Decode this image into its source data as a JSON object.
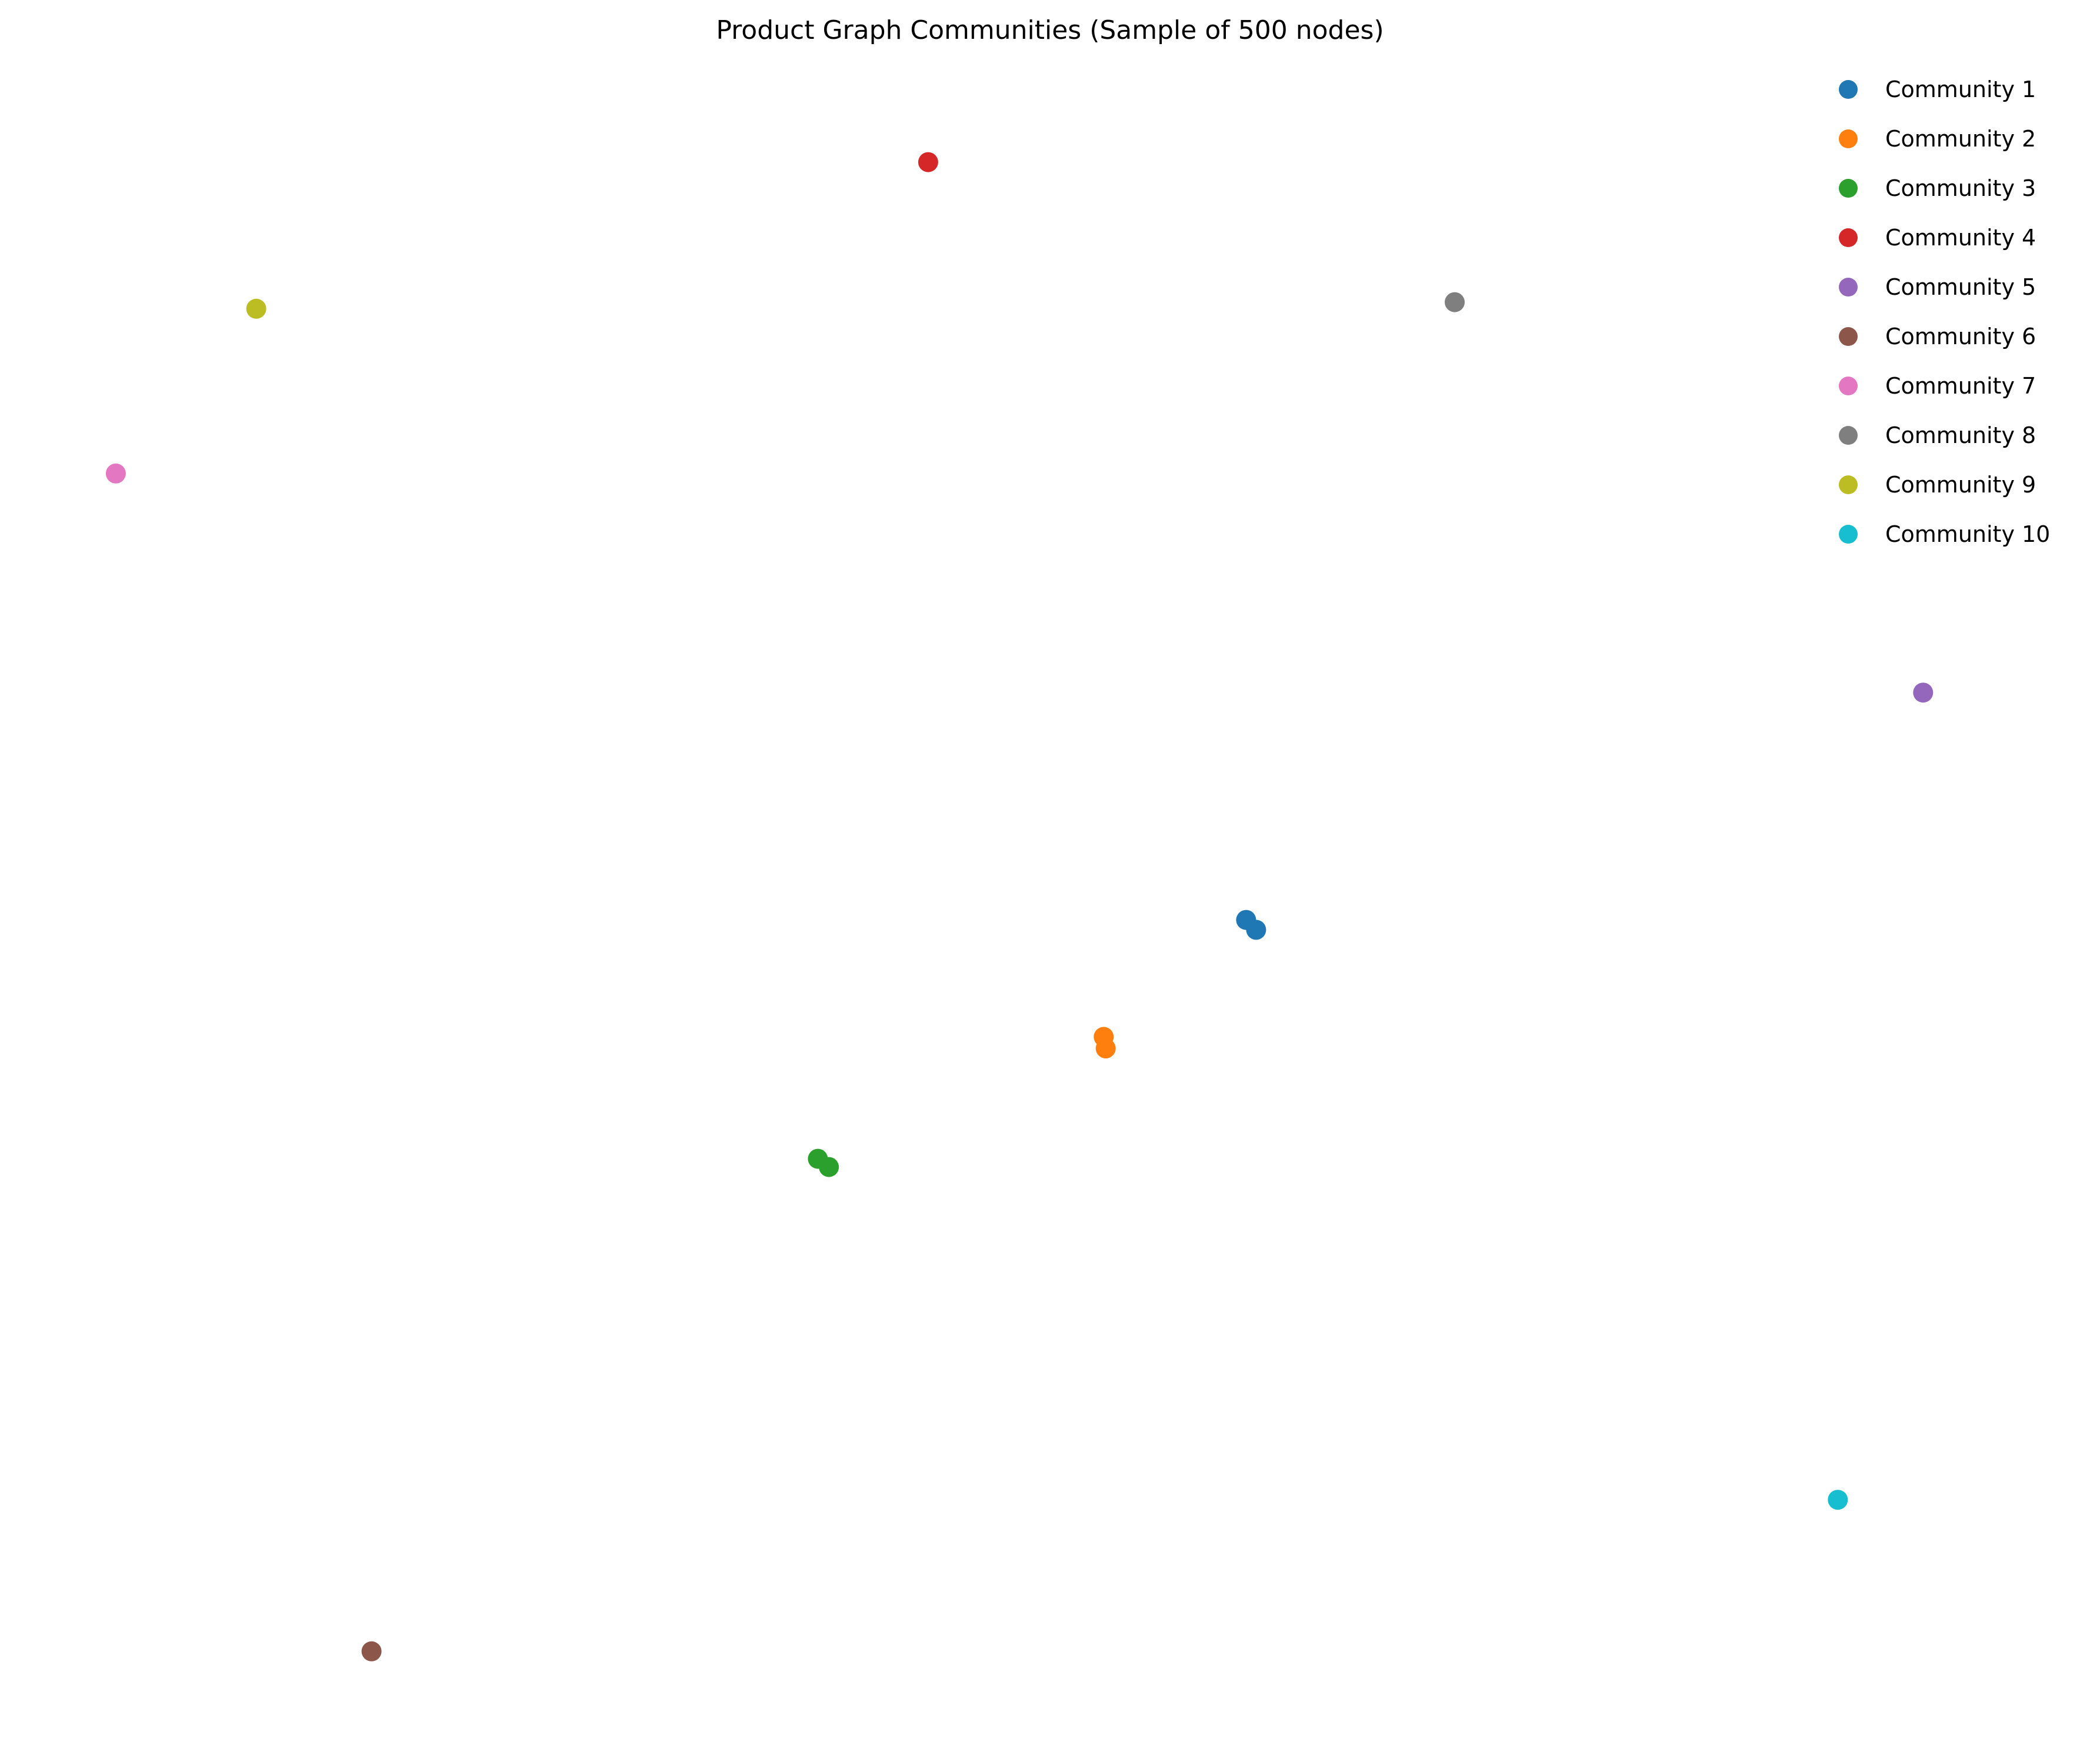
{
  "chart_data": {
    "type": "scatter",
    "title": "Product Graph Communities (Sample of 500 nodes)",
    "xlabel": "",
    "ylabel": "",
    "axes_visible": false,
    "grid": false,
    "legend_position": "top-right",
    "xlim": [
      0,
      100
    ],
    "ylim": [
      0,
      100
    ],
    "series": [
      {
        "name": "Community 1",
        "color": "#1f77b4",
        "points": [
          {
            "x": 60.95,
            "y": 48.8
          },
          {
            "x": 61.45,
            "y": 48.2
          }
        ]
      },
      {
        "name": "Community 2",
        "color": "#ff7f0e",
        "points": [
          {
            "x": 53.85,
            "y": 41.7
          },
          {
            "x": 53.95,
            "y": 41.0
          }
        ]
      },
      {
        "name": "Community 3",
        "color": "#2ca02c",
        "points": [
          {
            "x": 39.6,
            "y": 34.3
          },
          {
            "x": 40.15,
            "y": 33.8
          }
        ]
      },
      {
        "name": "Community 4",
        "color": "#d62728",
        "points": [
          {
            "x": 45.1,
            "y": 94.8
          }
        ]
      },
      {
        "name": "Community 5",
        "color": "#9467bd",
        "points": [
          {
            "x": 94.7,
            "y": 62.6
          }
        ]
      },
      {
        "name": "Community 6",
        "color": "#8c564b",
        "points": [
          {
            "x": 17.35,
            "y": 4.4
          }
        ]
      },
      {
        "name": "Community 7",
        "color": "#e377c2",
        "points": [
          {
            "x": 4.6,
            "y": 75.9
          }
        ]
      },
      {
        "name": "Community 8",
        "color": "#7f7f7f",
        "points": [
          {
            "x": 71.35,
            "y": 86.3
          }
        ]
      },
      {
        "name": "Community 9",
        "color": "#bcbd22",
        "points": [
          {
            "x": 11.6,
            "y": 85.9
          }
        ]
      },
      {
        "name": "Community 10",
        "color": "#17becf",
        "points": [
          {
            "x": 90.45,
            "y": 13.6
          }
        ]
      }
    ]
  }
}
